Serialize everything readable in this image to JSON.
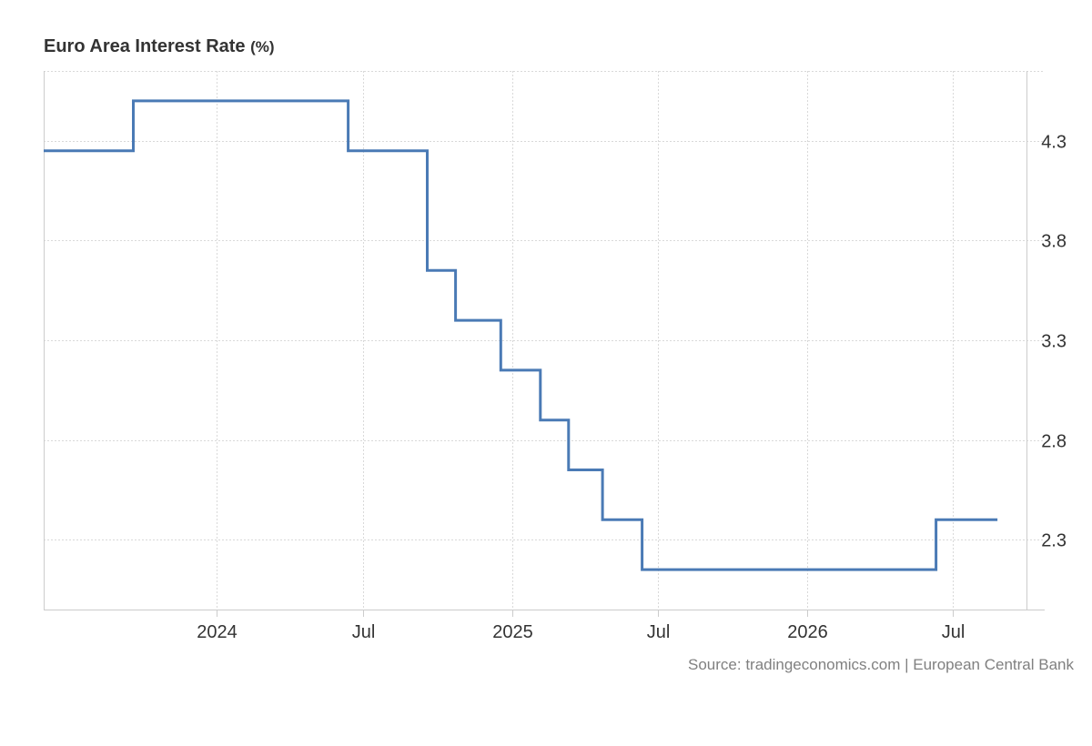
{
  "title": {
    "text": "Euro Area Interest Rate",
    "unit": "(%)"
  },
  "source": "Source: tradingeconomics.com | European Central Bank",
  "colors": {
    "line": "#4a7ab5",
    "grid": "#d9d9d9",
    "axis": "#cccccc"
  },
  "chart_data": {
    "type": "line",
    "step": true,
    "title": "Euro Area Interest Rate (%)",
    "xlabel": "",
    "ylabel": "",
    "grid": true,
    "legend": "none",
    "xlim": [
      "2023-06-01",
      "2026-09-30"
    ],
    "ylim": [
      1.95,
      4.65
    ],
    "x_ticks": [
      {
        "date": "2024-01-01",
        "label": "2024"
      },
      {
        "date": "2024-07-01",
        "label": "Jul"
      },
      {
        "date": "2025-01-01",
        "label": "2025"
      },
      {
        "date": "2025-07-01",
        "label": "Jul"
      },
      {
        "date": "2026-01-01",
        "label": "2026"
      },
      {
        "date": "2026-07-01",
        "label": "Jul"
      }
    ],
    "y_ticks": [
      2.3,
      2.8,
      3.3,
      3.8,
      4.3
    ],
    "y_tick_labels": [
      "2.3",
      "2.8",
      "3.3",
      "3.8",
      "4.3"
    ],
    "series": [
      {
        "x": [
          "2023-06-01",
          "2023-09-20",
          "2024-06-12",
          "2024-09-18",
          "2024-10-23",
          "2024-12-18",
          "2025-02-05",
          "2025-03-12",
          "2025-04-23",
          "2025-06-11",
          "2026-06-10",
          "2026-08-25"
        ],
        "values": [
          4.25,
          4.5,
          4.25,
          3.65,
          3.4,
          3.15,
          2.9,
          2.65,
          2.4,
          2.15,
          2.4,
          2.4
        ]
      }
    ]
  }
}
